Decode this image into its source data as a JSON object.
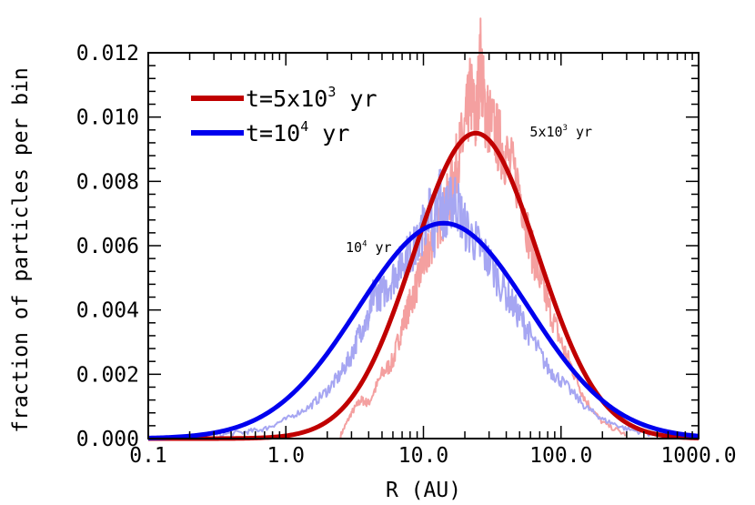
{
  "chart_data": {
    "type": "line",
    "title": "",
    "xlabel": "R (AU)",
    "ylabel": "fraction of particles per bin",
    "xscale": "log",
    "xlim": [
      0.1,
      1000.0
    ],
    "ylim": [
      0.0,
      0.012
    ],
    "xticks": [
      {
        "value": 0.1,
        "label": "0.1"
      },
      {
        "value": 1.0,
        "label": "1.0"
      },
      {
        "value": 10.0,
        "label": "10.0"
      },
      {
        "value": 100.0,
        "label": "100.0"
      },
      {
        "value": 1000.0,
        "label": "1000.0"
      }
    ],
    "yticks": [
      {
        "value": 0.0,
        "label": "0.000"
      },
      {
        "value": 0.002,
        "label": "0.002"
      },
      {
        "value": 0.004,
        "label": "0.004"
      },
      {
        "value": 0.006,
        "label": "0.006"
      },
      {
        "value": 0.008,
        "label": "0.008"
      },
      {
        "value": 0.01,
        "label": "0.010"
      },
      {
        "value": 0.012,
        "label": "0.012"
      }
    ],
    "legend_position": "top-left",
    "series": [
      {
        "name": "t=5x10^3 yr",
        "legend_main": "t=5x10",
        "legend_exp": "3",
        "legend_tail": " yr",
        "color": "#c00000",
        "noise_color": "#f4a0a0",
        "fit": {
          "peak_R": 24.0,
          "peak_value": 0.0095,
          "log_sigma": 0.45
        },
        "noisy_points": [
          [
            2.5,
            0.0001
          ],
          [
            3.0,
            0.0008
          ],
          [
            3.5,
            0.0012
          ],
          [
            4.0,
            0.0011
          ],
          [
            5.0,
            0.002
          ],
          [
            6.0,
            0.0024
          ],
          [
            7.0,
            0.0035
          ],
          [
            8.0,
            0.0042
          ],
          [
            9.0,
            0.0048
          ],
          [
            10.0,
            0.0055
          ],
          [
            11.0,
            0.0058
          ],
          [
            12.0,
            0.0065
          ],
          [
            14.0,
            0.007
          ],
          [
            16.0,
            0.0078
          ],
          [
            18.0,
            0.0088
          ],
          [
            20.0,
            0.0095
          ],
          [
            22.0,
            0.0108
          ],
          [
            24.0,
            0.0098
          ],
          [
            26.0,
            0.0118
          ],
          [
            28.0,
            0.0102
          ],
          [
            30.0,
            0.0099
          ],
          [
            35.0,
            0.0093
          ],
          [
            40.0,
            0.0088
          ],
          [
            50.0,
            0.0078
          ],
          [
            60.0,
            0.006
          ],
          [
            70.0,
            0.005
          ],
          [
            80.0,
            0.0042
          ],
          [
            100.0,
            0.003
          ],
          [
            120.0,
            0.0022
          ],
          [
            150.0,
            0.0012
          ],
          [
            200.0,
            0.0005
          ],
          [
            300.0,
            0.0001
          ]
        ]
      },
      {
        "name": "t=10^4 yr",
        "legend_main": "t=10",
        "legend_exp": "4",
        "legend_tail": " yr",
        "color": "#0000ee",
        "noise_color": "#a6a6f2",
        "fit": {
          "peak_R": 14.0,
          "peak_value": 0.0067,
          "log_sigma": 0.62
        },
        "noisy_points": [
          [
            0.3,
            0.0001
          ],
          [
            0.5,
            0.0002
          ],
          [
            0.7,
            0.0003
          ],
          [
            1.0,
            0.0006
          ],
          [
            1.5,
            0.001
          ],
          [
            2.0,
            0.0015
          ],
          [
            2.5,
            0.002
          ],
          [
            3.0,
            0.0026
          ],
          [
            3.5,
            0.0034
          ],
          [
            4.0,
            0.0037
          ],
          [
            4.3,
            0.0045
          ],
          [
            5.0,
            0.0045
          ],
          [
            6.0,
            0.005
          ],
          [
            7.0,
            0.0055
          ],
          [
            8.0,
            0.0058
          ],
          [
            9.0,
            0.006
          ],
          [
            10.0,
            0.0066
          ],
          [
            11.0,
            0.0073
          ],
          [
            12.0,
            0.0064
          ],
          [
            13.0,
            0.0078
          ],
          [
            14.0,
            0.0069
          ],
          [
            15.0,
            0.0072
          ],
          [
            17.0,
            0.0075
          ],
          [
            20.0,
            0.0066
          ],
          [
            25.0,
            0.006
          ],
          [
            30.0,
            0.0055
          ],
          [
            40.0,
            0.0045
          ],
          [
            50.0,
            0.0038
          ],
          [
            60.0,
            0.0032
          ],
          [
            80.0,
            0.0022
          ],
          [
            100.0,
            0.0018
          ],
          [
            150.0,
            0.001
          ],
          [
            200.0,
            0.0006
          ],
          [
            300.0,
            0.0003
          ],
          [
            500.0,
            0.0001
          ]
        ]
      }
    ],
    "annotations": [
      {
        "text_main": "5x10",
        "text_exp": "3",
        "text_tail": " yr",
        "x": 100.0,
        "y": 0.0094
      },
      {
        "text_main": "10",
        "text_exp": "4",
        "text_tail": " yr",
        "x": 4.0,
        "y": 0.0058
      }
    ]
  }
}
